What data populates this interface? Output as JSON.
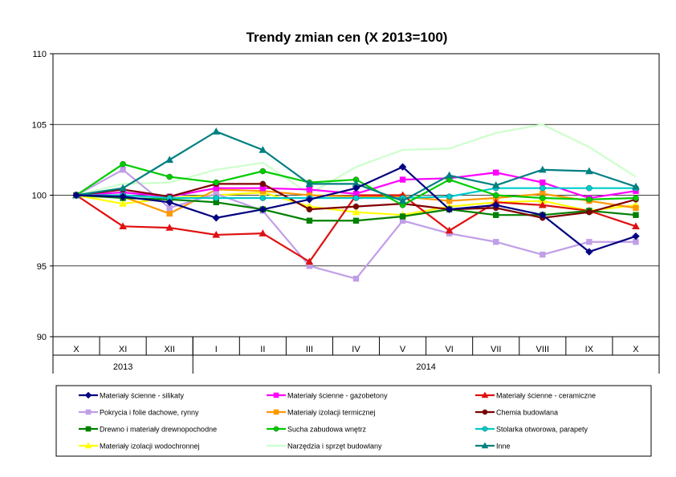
{
  "chart_data": {
    "type": "line",
    "title": "Trendy zmian cen (X 2013=100)",
    "ylim": [
      90,
      110
    ],
    "yticks": [
      "90",
      "95",
      "100",
      "105",
      "110"
    ],
    "ytick_values": [
      90,
      95,
      100,
      105,
      110
    ],
    "categories": [
      "X",
      "XI",
      "XII",
      "I",
      "II",
      "III",
      "IV",
      "V",
      "VI",
      "VII",
      "VIII",
      "IX",
      "X"
    ],
    "year_groups": [
      {
        "label": "2013",
        "span": 3
      },
      {
        "label": "2014",
        "span": 10
      }
    ],
    "grid": true,
    "legend_position": "bottom",
    "series": [
      {
        "name": "Materiały ścienne - silikaty",
        "color": "#000080",
        "marker": "diamond",
        "values": [
          100,
          99.9,
          99.5,
          98.4,
          99.0,
          99.7,
          100.5,
          102.0,
          99.0,
          99.3,
          98.6,
          96.0,
          97.1
        ]
      },
      {
        "name": "Materiały ścienne - gazobetony",
        "color": "#ff00ff",
        "marker": "square",
        "values": [
          100,
          100.2,
          99.9,
          100.5,
          100.5,
          100.4,
          100.1,
          101.1,
          101.2,
          101.6,
          100.9,
          99.8,
          100.3
        ]
      },
      {
        "name": "Materiały ścienne - ceramiczne",
        "color": "#e01010",
        "marker": "triangle",
        "values": [
          100,
          97.8,
          97.7,
          97.2,
          97.3,
          95.3,
          100.0,
          100.0,
          97.5,
          99.5,
          99.3,
          98.9,
          97.8
        ]
      },
      {
        "name": "Pokrycia i folie dachowe, rynny",
        "color": "#c09ee8",
        "marker": "square",
        "values": [
          100,
          101.8,
          99.1,
          100.1,
          98.9,
          95.0,
          94.1,
          98.2,
          97.3,
          96.7,
          95.8,
          96.7,
          96.7
        ]
      },
      {
        "name": "Materiały izolacji termicznej",
        "color": "#ff9900",
        "marker": "square",
        "values": [
          100,
          99.9,
          98.7,
          100.4,
          100.3,
          100.0,
          99.9,
          99.9,
          99.6,
          99.8,
          100.1,
          99.6,
          99.1
        ]
      },
      {
        "name": "Chemia budowlana",
        "color": "#800000",
        "marker": "circle",
        "values": [
          100,
          100.4,
          99.9,
          100.8,
          100.8,
          99.0,
          99.2,
          99.4,
          99.0,
          99.1,
          98.4,
          98.8,
          99.7
        ]
      },
      {
        "name": "Drewno i materiały drewnopochodne",
        "color": "#008000",
        "marker": "square",
        "values": [
          100,
          99.8,
          99.7,
          99.5,
          99.0,
          98.2,
          98.2,
          98.5,
          99.0,
          98.6,
          98.6,
          98.9,
          98.6
        ]
      },
      {
        "name": "Sucha zabudowa wnętrz",
        "color": "#00cc00",
        "marker": "circle",
        "values": [
          100,
          102.2,
          101.3,
          100.9,
          101.7,
          100.9,
          101.1,
          99.3,
          101.1,
          100.0,
          99.8,
          99.7,
          99.8
        ]
      },
      {
        "name": "Stolarka otworowa, parapety",
        "color": "#00cccc",
        "marker": "circle",
        "values": [
          100,
          100.0,
          99.8,
          99.8,
          99.8,
          99.8,
          99.8,
          99.8,
          99.9,
          100.5,
          100.5,
          100.5,
          100.5
        ]
      },
      {
        "name": "Materiały izolacji wodochronnej",
        "color": "#ffff00",
        "marker": "triangle",
        "values": [
          100,
          99.4,
          99.8,
          100.0,
          100.2,
          99.2,
          98.8,
          98.6,
          99.2,
          99.5,
          99.6,
          98.9,
          99.3
        ]
      },
      {
        "name": "Narzędzia i sprzęt budowlany",
        "color": "#ccffcc",
        "marker": "none",
        "values": [
          100,
          100.8,
          100.9,
          101.8,
          102.3,
          100.1,
          102.0,
          103.2,
          103.3,
          104.4,
          105.0,
          103.4,
          101.3
        ]
      },
      {
        "name": "Inne",
        "color": "#008080",
        "marker": "triangle",
        "values": [
          100,
          100.5,
          102.5,
          104.5,
          103.2,
          100.8,
          100.8,
          99.6,
          101.4,
          100.7,
          101.8,
          101.7,
          100.6
        ]
      }
    ]
  }
}
